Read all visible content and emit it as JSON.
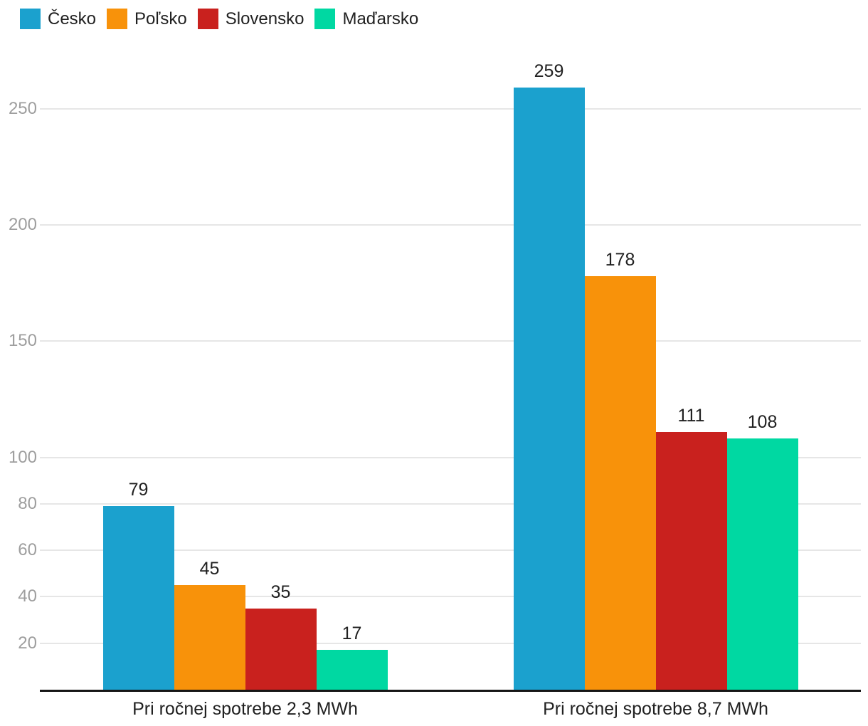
{
  "chart_data": {
    "type": "bar",
    "title": "",
    "xlabel": "",
    "ylabel": "",
    "categories": [
      "Pri ročnej spotrebe 2,3 MWh",
      "Pri ročnej spotrebe 8,7 MWh"
    ],
    "series": [
      {
        "name": "Česko",
        "color": "#1BA1CE",
        "values": [
          79,
          259
        ]
      },
      {
        "name": "Poľsko",
        "color": "#F8920A",
        "values": [
          45,
          178
        ]
      },
      {
        "name": "Slovensko",
        "color": "#C9211E",
        "values": [
          35,
          111
        ]
      },
      {
        "name": "Maďarsko",
        "color": "#00D8A2",
        "values": [
          17,
          108
        ]
      }
    ],
    "yticks": [
      20,
      40,
      60,
      80,
      100,
      150,
      200,
      250
    ],
    "ylim": [
      0,
      272
    ],
    "grid": true,
    "legend_position": "top-left",
    "value_labels": true
  },
  "styles": {
    "background": "#ffffff",
    "grid_color": "#e6e6e6",
    "axis_color": "#161616",
    "tick_label_color": "#9e9e9e",
    "value_label_color": "#212121",
    "category_label_color": "#212121",
    "legend_label_color": "#212121"
  }
}
